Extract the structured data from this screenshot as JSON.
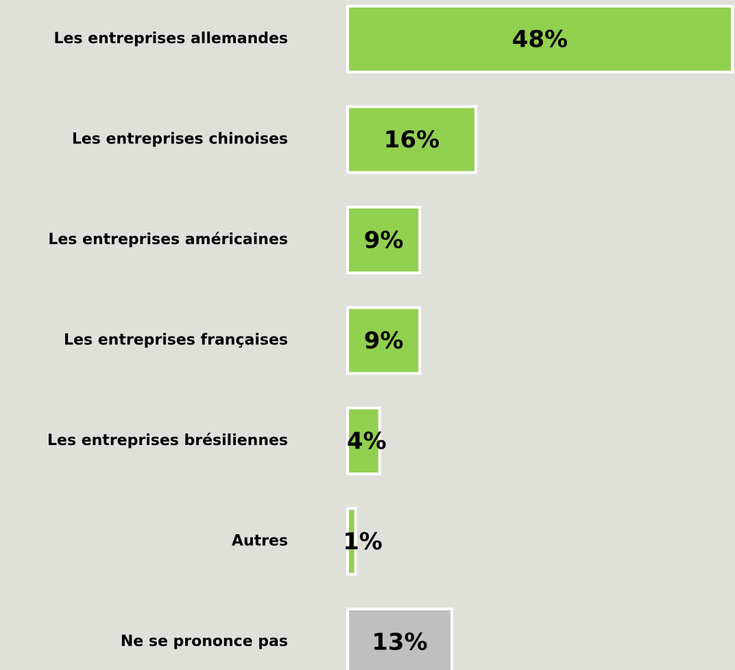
{
  "chart_data": {
    "type": "barh",
    "categories": [
      "Les entreprises allemandes",
      "Les entreprises chinoises",
      "Les entreprises américaines",
      "Les entreprises françaises",
      "Les entreprises brésiliennes",
      "Autres",
      "Ne se prononce pas"
    ],
    "values": [
      48,
      16,
      9,
      9,
      4,
      1,
      13
    ],
    "value_labels": [
      "48%",
      "16%",
      "9%",
      "9%",
      "4%",
      "1%",
      "13%"
    ],
    "colors": [
      "#92d050",
      "#92d050",
      "#92d050",
      "#92d050",
      "#92d050",
      "#92d050",
      "#bfbfbf"
    ]
  }
}
